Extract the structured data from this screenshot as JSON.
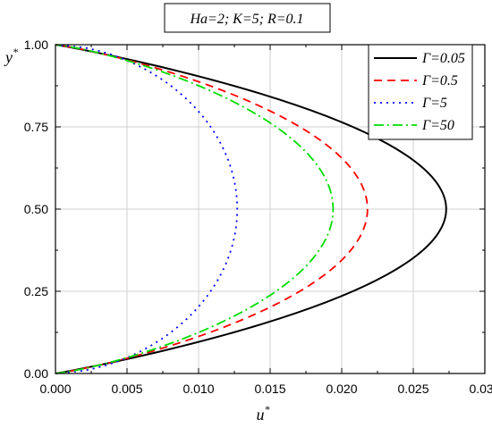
{
  "chart_data": {
    "type": "line",
    "title": "Ha=2; K=5; R=0.1",
    "xlabel": "u",
    "xlabel_sup": "*",
    "ylabel": "y",
    "ylabel_sup": "*",
    "xlim": [
      0,
      0.03
    ],
    "ylim": [
      0,
      1
    ],
    "x_ticks": [
      "0.000",
      "0.005",
      "0.010",
      "0.015",
      "0.020",
      "0.025",
      "0.030"
    ],
    "y_ticks": [
      "0.00",
      "0.25",
      "0.50",
      "0.75",
      "1.00"
    ],
    "grid": true,
    "legend_position": "top-right",
    "series": [
      {
        "name": "Γ=0.05",
        "color": "#000000",
        "dash": "solid",
        "max_u": 0.0273
      },
      {
        "name": "Γ=0.5",
        "color": "#ff0000",
        "dash": "dash",
        "max_u": 0.0218
      },
      {
        "name": "Γ=5",
        "color": "#0000ff",
        "dash": "dot",
        "max_u": 0.0127
      },
      {
        "name": "Γ=50",
        "color": "#00dd00",
        "dash": "dashdot",
        "max_u": 0.0194
      }
    ]
  }
}
